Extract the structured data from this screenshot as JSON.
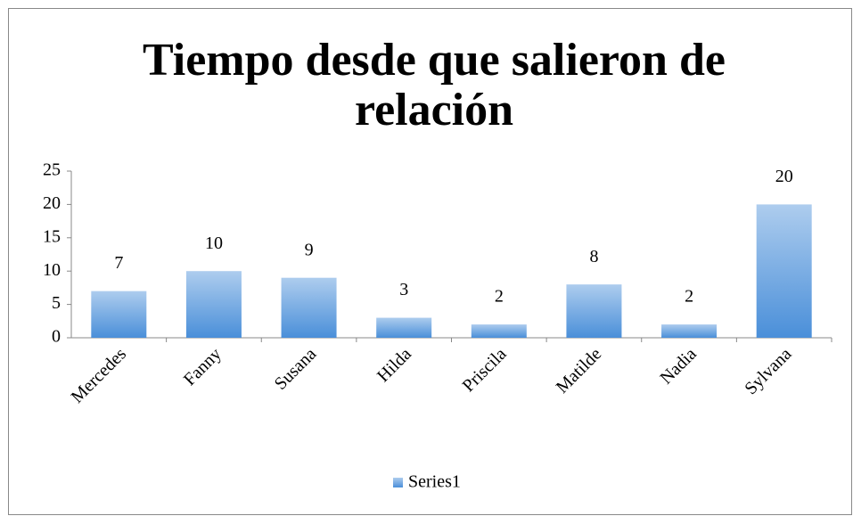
{
  "chart_data": {
    "type": "bar",
    "title": "Tiempo desde que salieron de relación",
    "categories": [
      "Mercedes",
      "Fanny",
      "Susana",
      "Hilda",
      "Priscila",
      "Matilde",
      "Nadia",
      "Sylvana"
    ],
    "series": [
      {
        "name": "Series1",
        "color": "#4a8fd9",
        "values": [
          7,
          10,
          9,
          3,
          2,
          8,
          2,
          20
        ]
      }
    ],
    "ylim": [
      0,
      25
    ],
    "yticks": [
      0,
      5,
      10,
      15,
      20,
      25
    ],
    "grid": false,
    "legend": "bottom"
  }
}
